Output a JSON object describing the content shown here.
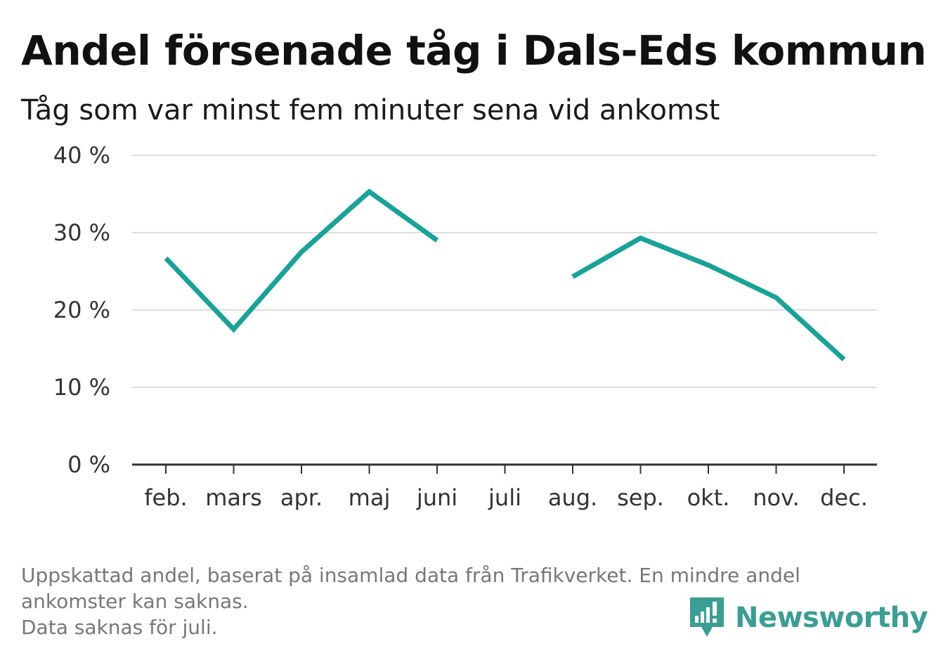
{
  "chart_data": {
    "type": "line",
    "title": "Andel försenade tåg i Dals-Eds kommun",
    "subtitle": "Tåg som var minst fem minuter sena vid ankomst",
    "categories": [
      "feb.",
      "mars",
      "apr.",
      "maj",
      "juni",
      "juli",
      "aug.",
      "sep.",
      "okt.",
      "nov.",
      "dec."
    ],
    "series": [
      {
        "values": [
          26.7,
          17.5,
          27.5,
          35.3,
          29.0,
          null,
          24.3,
          29.3,
          25.8,
          21.6,
          13.6
        ]
      }
    ],
    "yticks": [
      "0 %",
      "10 %",
      "20 %",
      "30 %",
      "40 %"
    ],
    "ylim": [
      0,
      40
    ],
    "grid": true,
    "colors": {
      "line": "#17a398",
      "grid": "#dddddd",
      "axis": "#333333"
    }
  },
  "footnote": {
    "line1": "Uppskattad andel, baserat på insamlad data från Trafikverket. En mindre andel",
    "line2": "ankomster kan saknas.",
    "line3": "Data saknas för juli."
  },
  "logo": {
    "text": "Newsworthy",
    "icon": "newsworthy-bar-chart-icon",
    "color": "#3a9e94"
  }
}
